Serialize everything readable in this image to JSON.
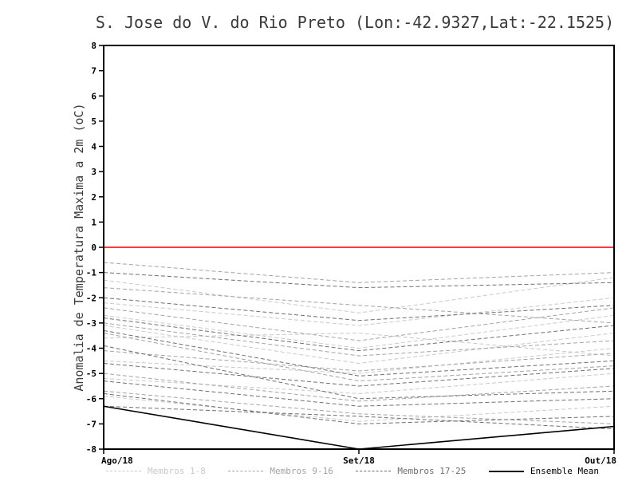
{
  "chart_data": {
    "type": "line",
    "title": "S. Jose do V. do Rio Preto (Lon:-42.9327,Lat:-22.1525)",
    "ylabel": "Anomalia de Temperatura Maxima a 2m (oC)",
    "xlabel": "",
    "x": [
      "Ago/18",
      "Set/18",
      "Out/18"
    ],
    "ylim": [
      -8,
      8
    ],
    "y_ticks": [
      -8,
      -7,
      -6,
      -5,
      -4,
      -3,
      -2,
      -1,
      0,
      1,
      2,
      3,
      4,
      5,
      6,
      7,
      8
    ],
    "grid": false,
    "legend_position": "bottom",
    "zero_line": {
      "value": 0,
      "color": "#fa3c3c"
    },
    "groups": [
      {
        "label": "Membros 1-8",
        "color": "#c9c9c9",
        "style": "dashed",
        "members": [
          [
            -1.3,
            -2.6,
            -1.2
          ],
          [
            -2.2,
            -3.1,
            -2.0
          ],
          [
            -2.7,
            -4.0,
            -2.7
          ],
          [
            -3.1,
            -4.6,
            -3.4
          ],
          [
            -3.6,
            -3.4,
            -4.3
          ],
          [
            -4.5,
            -5.0,
            -4.0
          ],
          [
            -5.2,
            -5.8,
            -5.0
          ],
          [
            -5.9,
            -6.9,
            -6.3
          ]
        ]
      },
      {
        "label": "Membros 9-16",
        "color": "#a3a3a3",
        "style": "dashed",
        "members": [
          [
            -0.6,
            -1.4,
            -1.0
          ],
          [
            -1.6,
            -2.3,
            -3.0
          ],
          [
            -2.4,
            -3.7,
            -2.4
          ],
          [
            -3.0,
            -4.3,
            -3.7
          ],
          [
            -3.4,
            -5.3,
            -4.7
          ],
          [
            -4.1,
            -4.9,
            -4.2
          ],
          [
            -5.0,
            -6.1,
            -5.5
          ],
          [
            -5.7,
            -6.6,
            -7.0
          ]
        ]
      },
      {
        "label": "Membros 17-25",
        "color": "#6f6f6f",
        "style": "dashed",
        "members": [
          [
            -1.0,
            -1.6,
            -1.4
          ],
          [
            -2.0,
            -2.9,
            -2.3
          ],
          [
            -2.8,
            -4.1,
            -3.1
          ],
          [
            -3.3,
            -5.1,
            -4.5
          ],
          [
            -3.9,
            -6.0,
            -5.7
          ],
          [
            -4.6,
            -5.5,
            -4.8
          ],
          [
            -5.3,
            -6.3,
            -6.0
          ],
          [
            -5.8,
            -7.0,
            -6.7
          ],
          [
            -6.3,
            -6.7,
            -7.2
          ]
        ]
      }
    ],
    "mean": {
      "label": "Ensemble Mean",
      "color": "#000000",
      "style": "solid",
      "values": [
        -6.3,
        -8.0,
        -7.1
      ]
    }
  }
}
